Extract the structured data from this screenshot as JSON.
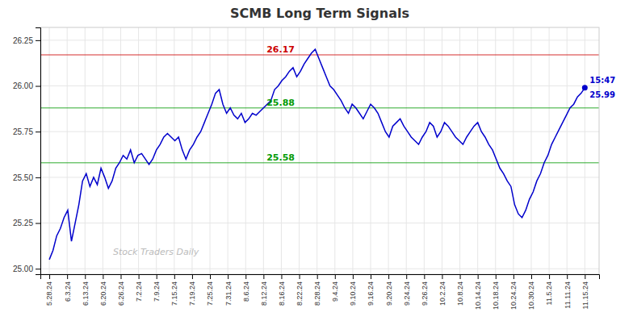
{
  "chart_data": {
    "type": "line",
    "title": "SCMB Long Term Signals",
    "color": "#0000cc",
    "grid": true,
    "xlim": [
      -0.5,
      30.8
    ],
    "xticks": [
      {
        "value": 0,
        "label": "5.28.24"
      },
      {
        "value": 1,
        "label": "6.3.24"
      },
      {
        "value": 2,
        "label": "6.13.24"
      },
      {
        "value": 3,
        "label": "6.20.24"
      },
      {
        "value": 4,
        "label": "6.26.24"
      },
      {
        "value": 5,
        "label": "7.2.24"
      },
      {
        "value": 6,
        "label": "7.9.24"
      },
      {
        "value": 7,
        "label": "7.15.24"
      },
      {
        "value": 8,
        "label": "7.19.24"
      },
      {
        "value": 9,
        "label": "7.25.24"
      },
      {
        "value": 10,
        "label": "7.31.24"
      },
      {
        "value": 11,
        "label": "8.6.24"
      },
      {
        "value": 12,
        "label": "8.12.24"
      },
      {
        "value": 13,
        "label": "8.16.24"
      },
      {
        "value": 14,
        "label": "8.22.24"
      },
      {
        "value": 15,
        "label": "8.28.24"
      },
      {
        "value": 16,
        "label": "9.4.24"
      },
      {
        "value": 17,
        "label": "9.10.24"
      },
      {
        "value": 18,
        "label": "9.16.24"
      },
      {
        "value": 19,
        "label": "9.20.24"
      },
      {
        "value": 20,
        "label": "9.24.24"
      },
      {
        "value": 21,
        "label": "9.26.24"
      },
      {
        "value": 22,
        "label": "10.2.24"
      },
      {
        "value": 23,
        "label": "10.8.24"
      },
      {
        "value": 24,
        "label": "10.14.24"
      },
      {
        "value": 25,
        "label": "10.18.24"
      },
      {
        "value": 26,
        "label": "10.24.24"
      },
      {
        "value": 27,
        "label": "10.30.24"
      },
      {
        "value": 28,
        "label": "11.5.24"
      },
      {
        "value": 29,
        "label": "11.11.24"
      },
      {
        "value": 30,
        "label": "11.15.24"
      }
    ],
    "ylim": [
      24.97,
      26.32
    ],
    "yticks": [
      {
        "value": 25.0,
        "label": "25.00"
      },
      25.25,
      {
        "value": 25.5,
        "label": "25.50"
      },
      25.75,
      {
        "value": 26.0,
        "label": "26.00"
      },
      26.25
    ],
    "values": [
      25.05,
      25.1,
      25.18,
      25.22,
      25.28,
      25.32,
      25.15,
      25.25,
      25.35,
      25.48,
      25.52,
      25.45,
      25.5,
      25.46,
      25.55,
      25.5,
      25.44,
      25.48,
      25.55,
      25.58,
      25.62,
      25.6,
      25.65,
      25.58,
      25.62,
      25.63,
      25.6,
      25.57,
      25.6,
      25.65,
      25.68,
      25.72,
      25.74,
      25.72,
      25.7,
      25.72,
      25.65,
      25.6,
      25.65,
      25.68,
      25.72,
      25.75,
      25.8,
      25.85,
      25.9,
      25.96,
      25.98,
      25.9,
      25.85,
      25.88,
      25.84,
      25.82,
      25.85,
      25.8,
      25.82,
      25.85,
      25.84,
      25.86,
      25.88,
      25.9,
      25.92,
      25.98,
      26.0,
      26.03,
      26.05,
      26.08,
      26.1,
      26.05,
      26.08,
      26.12,
      26.15,
      26.18,
      26.2,
      26.15,
      26.1,
      26.05,
      26.0,
      25.98,
      25.95,
      25.92,
      25.88,
      25.85,
      25.9,
      25.88,
      25.85,
      25.82,
      25.86,
      25.9,
      25.88,
      25.85,
      25.8,
      25.75,
      25.72,
      25.78,
      25.8,
      25.82,
      25.78,
      25.75,
      25.72,
      25.7,
      25.68,
      25.72,
      25.75,
      25.8,
      25.78,
      25.72,
      25.75,
      25.8,
      25.78,
      25.75,
      25.72,
      25.7,
      25.68,
      25.72,
      25.75,
      25.78,
      25.8,
      25.75,
      25.72,
      25.68,
      25.65,
      25.6,
      25.55,
      25.52,
      25.48,
      25.45,
      25.35,
      25.3,
      25.28,
      25.32,
      25.38,
      25.42,
      25.48,
      25.52,
      25.58,
      25.62,
      25.68,
      25.72,
      25.76,
      25.8,
      25.84,
      25.88,
      25.9,
      25.94,
      25.96,
      25.99
    ],
    "annotations": [
      {
        "type": "hline",
        "value": 26.17,
        "label": "26.17",
        "color": "#cc0000"
      },
      {
        "type": "hline",
        "value": 25.88,
        "label": "25.88",
        "color": "#009900"
      },
      {
        "type": "hline",
        "value": 25.58,
        "label": "25.58",
        "color": "#009900"
      },
      {
        "type": "point",
        "value": 25.99,
        "label": "25.99",
        "text": "15:47",
        "color": "#0000cc"
      },
      {
        "type": "watermark",
        "text": "Stock Traders Daily"
      }
    ]
  }
}
